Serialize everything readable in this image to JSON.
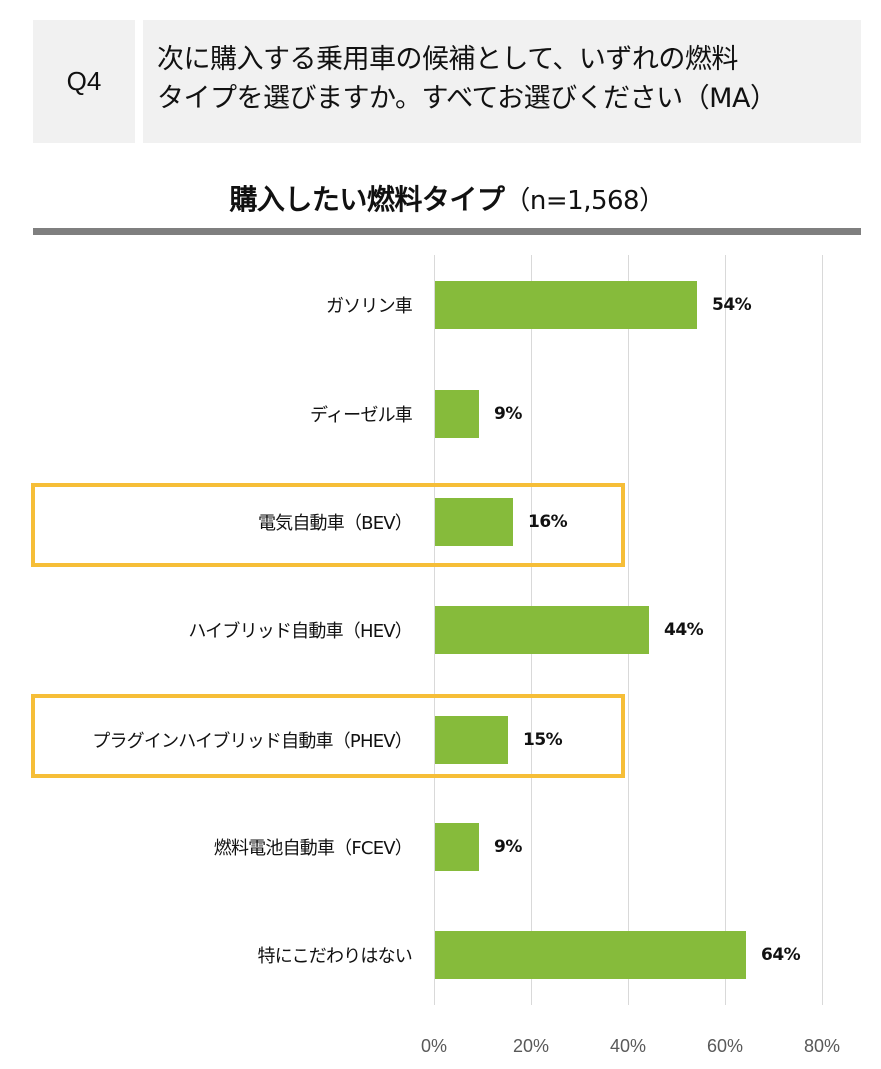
{
  "header": {
    "question_number": "Q4",
    "question_line1": "次に購入する乗用車の候補として、いずれの燃料",
    "question_line2": "タイプを選びますか。すべてお選びください（MA）"
  },
  "chart_title": {
    "main": "購入したい燃料タイプ",
    "sample": "（n=1,568）"
  },
  "colors": {
    "bar": "#86bb3b",
    "highlight_border": "#f6be37",
    "title_bar": "#7f7f7f",
    "question_bg": "#f1f1f1",
    "gridline": "#d9d9d9"
  },
  "bars": [
    {
      "label": "ガソリン車",
      "value": 54,
      "value_label": "54%"
    },
    {
      "label": "ディーゼル車",
      "value": 9,
      "value_label": "9%"
    },
    {
      "label": "電気自動車（BEV）",
      "value": 16,
      "value_label": "16%"
    },
    {
      "label": "ハイブリッド自動車（HEV）",
      "value": 44,
      "value_label": "44%"
    },
    {
      "label": "プラグインハイブリッド自動車（PHEV）",
      "value": 15,
      "value_label": "15%"
    },
    {
      "label": "燃料電池自動車（FCEV）",
      "value": 9,
      "value_label": "9%"
    },
    {
      "label": "特にこだわりはない",
      "value": 64,
      "value_label": "64%"
    }
  ],
  "axis": {
    "ticks": [
      "0%",
      "20%",
      "40%",
      "60%",
      "80%"
    ]
  },
  "highlighted": [
    "電気自動車（BEV）",
    "プラグインハイブリッド自動車（PHEV）"
  ],
  "chart_data": {
    "type": "bar",
    "orientation": "horizontal",
    "title": "購入したい燃料タイプ（n=1,568）",
    "categories": [
      "ガソリン車",
      "ディーゼル車",
      "電気自動車（BEV）",
      "ハイブリッド自動車（HEV）",
      "プラグインハイブリッド自動車（PHEV）",
      "燃料電池自動車（FCEV）",
      "特にこだわりはない"
    ],
    "values": [
      54,
      9,
      16,
      44,
      15,
      9,
      64
    ],
    "value_labels": [
      "54%",
      "9%",
      "16%",
      "44%",
      "15%",
      "9%",
      "64%"
    ],
    "xlabel": "",
    "ylabel": "",
    "xlim": [
      0,
      80
    ],
    "x_ticks": [
      "0%",
      "20%",
      "40%",
      "60%",
      "80%"
    ],
    "grid": true,
    "legend": "none",
    "annotations": [
      "Highlight boxes around 電気自動車（BEV） and プラグインハイブリッド自動車（PHEV）"
    ]
  }
}
